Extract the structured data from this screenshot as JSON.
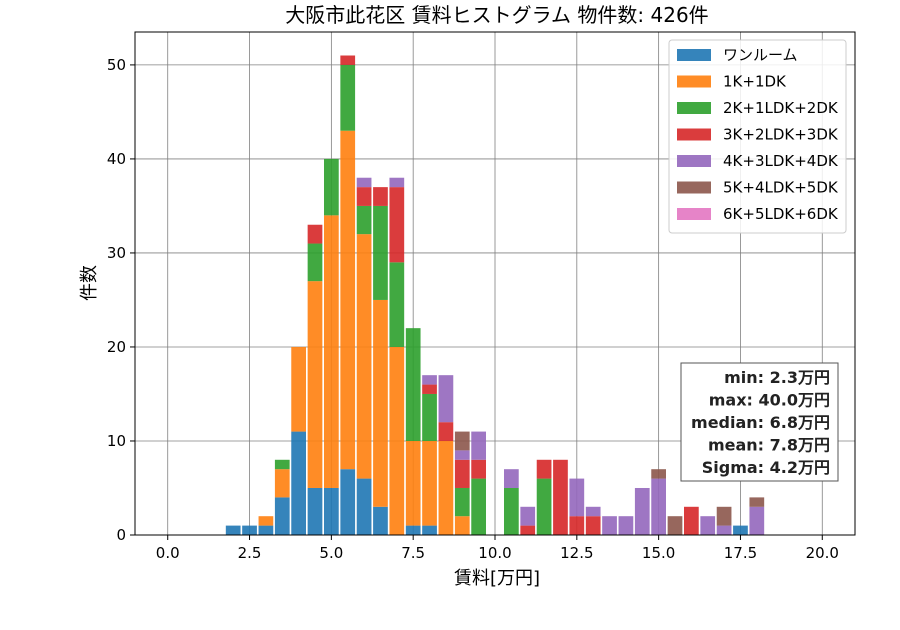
{
  "chart_data": {
    "type": "bar",
    "title": "大阪市此花区 賃料ヒストグラム  物件数: 426件",
    "xlabel": "賃料[万円]",
    "ylabel": "件数",
    "xlim": [
      -1.0,
      21.0
    ],
    "ylim": [
      0,
      53.5
    ],
    "xticks": [
      0,
      2.5,
      5,
      7.5,
      10,
      12.5,
      15,
      17.5,
      20
    ],
    "xtick_labels": [
      "0.0",
      "2.5",
      "5.0",
      "7.5",
      "10.0",
      "12.5",
      "15.0",
      "17.5",
      "20.0"
    ],
    "yticks": [
      0,
      10,
      20,
      30,
      40,
      50
    ],
    "ytick_labels": [
      "0",
      "10",
      "20",
      "30",
      "40",
      "50"
    ],
    "bin_width": 0.5,
    "stacked": true,
    "grid": true,
    "legend_position": "top-right",
    "x": [
      2.0,
      2.5,
      3.0,
      3.5,
      4.0,
      4.5,
      5.0,
      5.5,
      6.0,
      6.5,
      7.0,
      7.5,
      8.0,
      8.5,
      9.0,
      9.5,
      10.0,
      10.5,
      11.0,
      11.5,
      12.0,
      12.5,
      13.0,
      13.5,
      14.0,
      14.5,
      15.0,
      15.5,
      16.0,
      16.5,
      17.0,
      17.5,
      18.0
    ],
    "series": [
      {
        "name": "ワンルーム",
        "color": "#1f77b4",
        "values": [
          1,
          1,
          1,
          4,
          11,
          5,
          5,
          7,
          6,
          3,
          0,
          1,
          1,
          0,
          0,
          0,
          0,
          0,
          0,
          0,
          0,
          0,
          0,
          0,
          0,
          0,
          0,
          0,
          0,
          0,
          0,
          1,
          0
        ]
      },
      {
        "name": "1K+1DK",
        "color": "#ff7f0e",
        "values": [
          0,
          0,
          1,
          3,
          9,
          22,
          29,
          36,
          26,
          22,
          20,
          9,
          9,
          10,
          2,
          0,
          0,
          0,
          0,
          0,
          0,
          0,
          0,
          0,
          0,
          0,
          0,
          0,
          0,
          0,
          0,
          0,
          0
        ]
      },
      {
        "name": "2K+1LDK+2DK",
        "color": "#2ca02c",
        "values": [
          0,
          0,
          0,
          1,
          0,
          4,
          6,
          7,
          3,
          10,
          9,
          12,
          5,
          0,
          3,
          6,
          0,
          5,
          0,
          6,
          0,
          0,
          0,
          0,
          0,
          0,
          0,
          0,
          0,
          0,
          0,
          0,
          0
        ]
      },
      {
        "name": "3K+2LDK+3DK",
        "color": "#d62728",
        "values": [
          0,
          0,
          0,
          0,
          0,
          2,
          0,
          1,
          2,
          2,
          8,
          0,
          1,
          2,
          3,
          2,
          0,
          0,
          1,
          2,
          8,
          2,
          2,
          0,
          0,
          0,
          0,
          0,
          3,
          0,
          0,
          0,
          0
        ]
      },
      {
        "name": "4K+3LDK+4DK",
        "color": "#9467bd",
        "values": [
          0,
          0,
          0,
          0,
          0,
          0,
          0,
          0,
          1,
          0,
          1,
          0,
          1,
          5,
          1,
          3,
          0,
          2,
          2,
          0,
          0,
          4,
          1,
          2,
          2,
          5,
          6,
          0,
          0,
          2,
          1,
          0,
          3
        ]
      },
      {
        "name": "5K+4LDK+5DK",
        "color": "#8c564b",
        "values": [
          0,
          0,
          0,
          0,
          0,
          0,
          0,
          0,
          0,
          0,
          0,
          0,
          0,
          0,
          2,
          0,
          0,
          0,
          0,
          0,
          0,
          0,
          0,
          0,
          0,
          0,
          1,
          2,
          0,
          0,
          2,
          0,
          1
        ]
      },
      {
        "name": "6K+5LDK+6DK",
        "color": "#e377c2",
        "values": [
          0,
          0,
          0,
          0,
          0,
          0,
          0,
          0,
          0,
          0,
          0,
          0,
          0,
          0,
          0,
          0,
          0,
          0,
          0,
          0,
          0,
          0,
          0,
          0,
          0,
          0,
          0,
          0,
          0,
          0,
          0,
          0,
          0
        ]
      }
    ],
    "stats": [
      "min: 2.3万円",
      "max: 40.0万円",
      "median: 6.8万円",
      "mean: 7.8万円",
      "Sigma: 4.2万円"
    ]
  }
}
